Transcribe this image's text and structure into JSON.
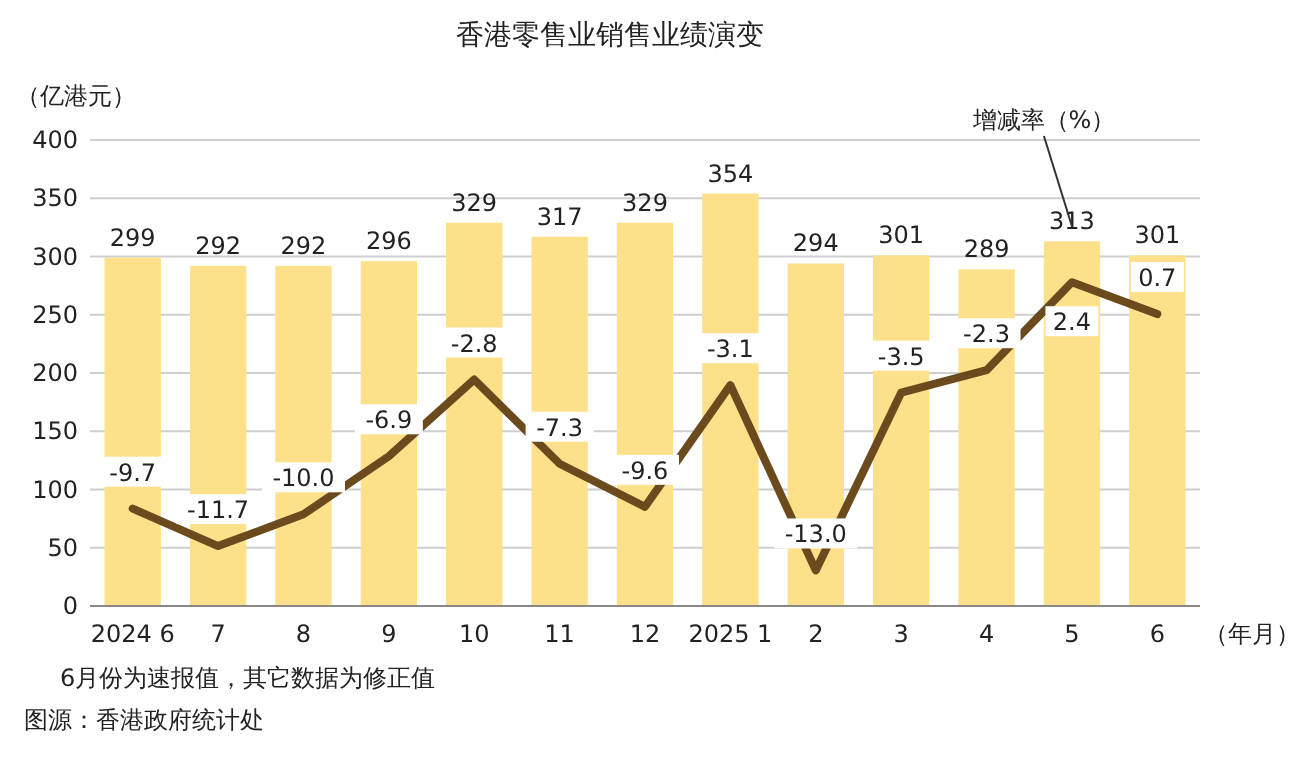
{
  "chart_data": {
    "type": "bar",
    "title": "香港零售业销售业绩演变",
    "ylabel": "（亿港元）",
    "xlabel": "（年月）",
    "categories": [
      "2024 6",
      "7",
      "8",
      "9",
      "10",
      "11",
      "12",
      "2025 1",
      "2",
      "3",
      "4",
      "5",
      "6"
    ],
    "series": [
      {
        "color": "#fde08a",
        "values": [
          299,
          292,
          292,
          296,
          329,
          317,
          329,
          354,
          294,
          301,
          289,
          313,
          301
        ],
        "value_labels": [
          "299",
          "292",
          "292",
          "296",
          "329",
          "317",
          "329",
          "354",
          "294",
          "301",
          "289",
          "313",
          "301"
        ]
      },
      {
        "type": "line",
        "axis": "y2",
        "name": "增减率（%）",
        "color": "#6b4a1e",
        "values": [
          -9.7,
          -11.7,
          -10.0,
          -6.9,
          -2.8,
          -7.3,
          -9.6,
          -3.1,
          -13.0,
          -3.5,
          -2.3,
          2.4,
          0.7
        ],
        "value_labels": [
          "-9.7",
          "-11.7",
          "-10.0",
          "-6.9",
          "-2.8",
          "-7.3",
          "-9.6",
          "-3.1",
          "-13.0",
          "-3.5",
          "-2.3",
          "2.4",
          "0.7"
        ]
      }
    ],
    "ylim": [
      0,
      400
    ],
    "yticks": [
      0,
      50,
      100,
      150,
      200,
      250,
      300,
      350,
      400
    ],
    "y2lim": [
      -14.9,
      10
    ],
    "grid": "y",
    "annotations": [
      "6月份为速报值，其它数据为修正值",
      "图源：香港政府统计处"
    ]
  }
}
